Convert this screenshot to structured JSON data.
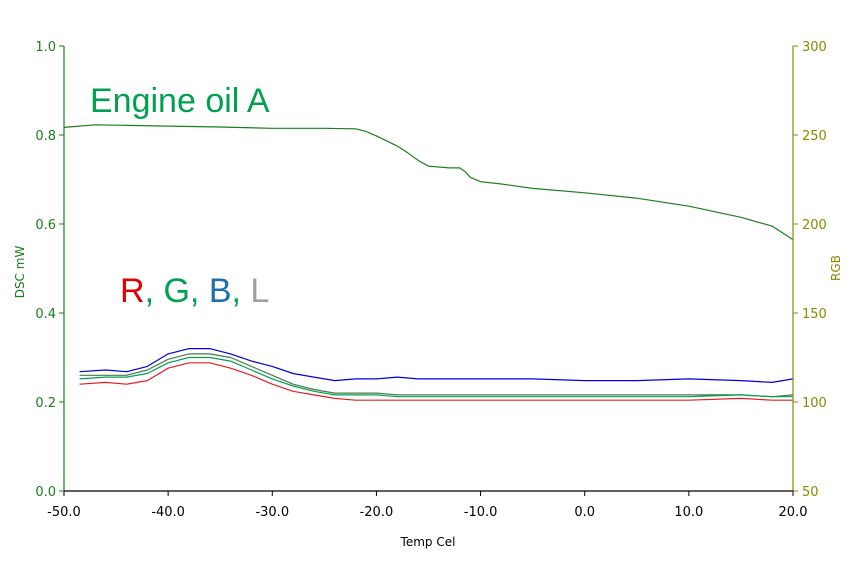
{
  "chart_data": {
    "type": "line",
    "annotations": {
      "title": "Engine oil A",
      "channels": [
        {
          "text": "R",
          "color": "#e00000"
        },
        {
          "text": ",",
          "color": "#00a050"
        },
        {
          "text": " G",
          "color": "#00a050"
        },
        {
          "text": ",",
          "color": "#00a050"
        },
        {
          "text": " B",
          "color": "#1f6fb0"
        },
        {
          "text": ",",
          "color": "#00a050"
        },
        {
          "text": " L",
          "color": "#a0a0a0"
        }
      ]
    },
    "xlabel": "Temp Cel",
    "ylabel_left": "DSC mW",
    "ylabel_right": "RGB",
    "xlim": [
      -50,
      20
    ],
    "ylim_left": [
      0,
      1.0
    ],
    "ylim_right": [
      50,
      300
    ],
    "x_ticks": [
      "-50.0",
      "-40.0",
      "-30.0",
      "-20.0",
      "-10.0",
      "0.0",
      "10.0",
      "20.0"
    ],
    "y_left_ticks": [
      "0.0",
      "0.2",
      "0.4",
      "0.6",
      "0.8",
      "1.0"
    ],
    "y_right_ticks": [
      "50",
      "100",
      "150",
      "200",
      "250",
      "300"
    ],
    "colors": {
      "left_axis": "#1a7f1a",
      "right_axis": "#8a8a00",
      "title": "#00a050"
    },
    "series": [
      {
        "axis": "left",
        "color": "#1a7f1a",
        "x": [
          -50,
          -47,
          -45,
          -40,
          -35,
          -30,
          -25,
          -22,
          -21,
          -20,
          -18,
          -17,
          -16,
          -15,
          -13,
          -12,
          -11.5,
          -11,
          -10,
          -8,
          -5,
          0,
          5,
          10,
          15,
          18,
          19,
          20
        ],
        "y": [
          0.817,
          0.823,
          0.822,
          0.82,
          0.818,
          0.815,
          0.815,
          0.814,
          0.808,
          0.798,
          0.775,
          0.76,
          0.743,
          0.73,
          0.726,
          0.726,
          0.718,
          0.705,
          0.695,
          0.69,
          0.68,
          0.67,
          0.658,
          0.64,
          0.615,
          0.595,
          0.58,
          0.565
        ]
      },
      {
        "axis": "right",
        "color": "#0000e0",
        "x": [
          -48.5,
          -46,
          -44,
          -42,
          -40,
          -38,
          -36,
          -34,
          -32,
          -30,
          -28,
          -26,
          -24,
          -22,
          -20,
          -18,
          -16,
          -14,
          -12,
          -10,
          -5,
          0,
          5,
          10,
          15,
          18,
          20
        ],
        "y": [
          117,
          118,
          117,
          120,
          127,
          130,
          130,
          127,
          123,
          120,
          116,
          114,
          112,
          113,
          113,
          114,
          113,
          113,
          113,
          113,
          113,
          112,
          112,
          113,
          112,
          111,
          113
        ]
      },
      {
        "axis": "right",
        "color": "#4a7a4a",
        "x": [
          -48.5,
          -46,
          -44,
          -42,
          -40,
          -38,
          -36,
          -34,
          -32,
          -30,
          -28,
          -26,
          -24,
          -22,
          -20,
          -18,
          -16,
          -14,
          -12,
          -10,
          -5,
          0,
          5,
          10,
          15,
          18,
          20
        ],
        "y": [
          115,
          115,
          115,
          118,
          124,
          127,
          127,
          125,
          120,
          115,
          110,
          107,
          105,
          105,
          105,
          104,
          104,
          104,
          104,
          104,
          104,
          104,
          104,
          104,
          104,
          103,
          104
        ]
      },
      {
        "axis": "right",
        "color": "#00a050",
        "x": [
          -48.5,
          -46,
          -44,
          -42,
          -40,
          -38,
          -36,
          -34,
          -32,
          -30,
          -28,
          -26,
          -24,
          -22,
          -20,
          -18,
          -16,
          -14,
          -12,
          -10,
          -5,
          0,
          5,
          10,
          15,
          18,
          20
        ],
        "y": [
          113,
          114,
          114,
          116,
          122,
          125,
          125,
          123,
          118,
          113,
          109,
          106,
          104,
          104,
          104,
          103,
          103,
          103,
          103,
          103,
          103,
          103,
          103,
          103,
          104,
          103,
          103
        ]
      },
      {
        "axis": "right",
        "color": "#e02020",
        "x": [
          -48.5,
          -46,
          -44,
          -42,
          -40,
          -38,
          -36,
          -34,
          -32,
          -30,
          -28,
          -26,
          -24,
          -22,
          -20,
          -18,
          -16,
          -14,
          -12,
          -10,
          -5,
          0,
          5,
          10,
          15,
          18,
          20
        ],
        "y": [
          110,
          111,
          110,
          112,
          119,
          122,
          122,
          119,
          115,
          110,
          106,
          104,
          102,
          101,
          101,
          101,
          101,
          101,
          101,
          101,
          101,
          101,
          101,
          101,
          102,
          101,
          101
        ]
      }
    ]
  }
}
